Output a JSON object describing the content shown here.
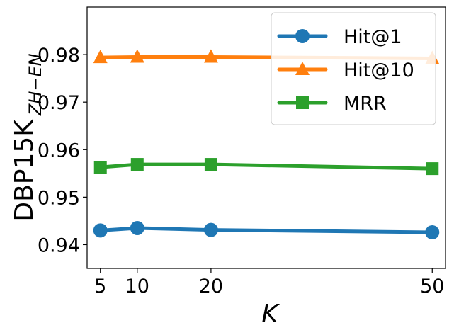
{
  "chart_data": {
    "type": "line",
    "x": [
      5,
      10,
      20,
      50
    ],
    "xlim": [
      3.2,
      51.8
    ],
    "ylim": [
      0.935,
      0.99
    ],
    "xticks": [
      5,
      10,
      20,
      50
    ],
    "xtick_labels": [
      "5",
      "10",
      "20",
      "50"
    ],
    "yticks": [
      0.94,
      0.95,
      0.96,
      0.97,
      0.98
    ],
    "ytick_labels": [
      "0.94",
      "0.95",
      "0.96",
      "0.97",
      "0.98"
    ],
    "xlabel": "K",
    "ylabel_main": "DBP15K",
    "ylabel_sub": "ZH−EN",
    "grid": false,
    "legend_position": "top-right",
    "series": [
      {
        "name": "Hit@1",
        "marker": "circle",
        "color": "#1f77b4",
        "values": [
          0.943,
          0.9435,
          0.9431,
          0.9426
        ]
      },
      {
        "name": "Hit@10",
        "marker": "triangle",
        "color": "#ff7f0e",
        "values": [
          0.9794,
          0.9795,
          0.9795,
          0.9792
        ]
      },
      {
        "name": "MRR",
        "marker": "square",
        "color": "#2ca02c",
        "values": [
          0.9563,
          0.9569,
          0.9569,
          0.956
        ]
      }
    ]
  }
}
